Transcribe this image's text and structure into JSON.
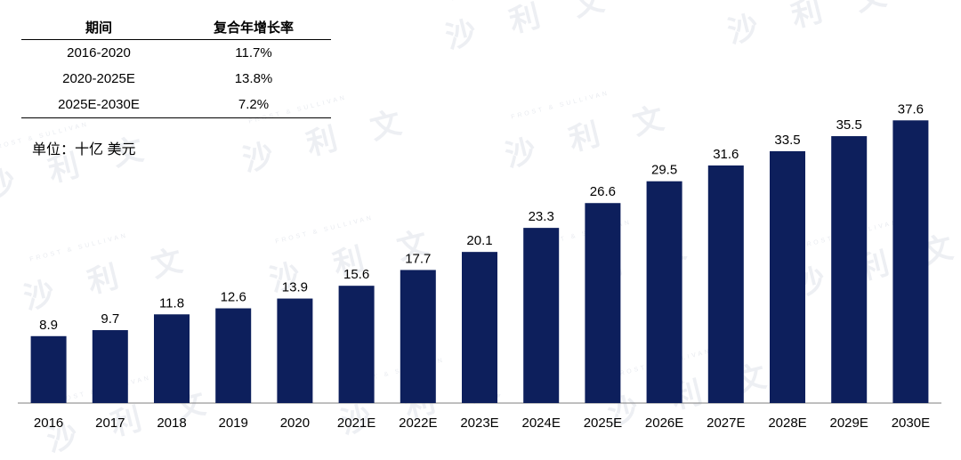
{
  "table": {
    "headers": [
      "期间",
      "复合年增长率"
    ],
    "rows": [
      [
        "2016-2020",
        "11.7%"
      ],
      [
        "2020-2025E",
        "13.8%"
      ],
      [
        "2025E-2030E",
        "7.2%"
      ]
    ]
  },
  "unit_label": "单位：十亿 美元",
  "watermark": {
    "text": "沙 利 文",
    "subtext": "FROST & SULLIVAN"
  },
  "colors": {
    "bar": "#0d1f5c",
    "axis": "#7f7f7f",
    "watermark": "#dfe2ea"
  },
  "chart_data": {
    "type": "bar",
    "categories": [
      "2016",
      "2017",
      "2018",
      "2019",
      "2020",
      "2021E",
      "2022E",
      "2023E",
      "2024E",
      "2025E",
      "2026E",
      "2027E",
      "2028E",
      "2029E",
      "2030E"
    ],
    "values": [
      8.9,
      9.7,
      11.8,
      12.6,
      13.9,
      15.6,
      17.7,
      20.1,
      23.3,
      26.6,
      29.5,
      31.6,
      33.5,
      35.5,
      37.6
    ],
    "data_labels": [
      "8.9",
      "9.7",
      "11.8",
      "12.6",
      "13.9",
      "15.6",
      "17.7",
      "20.1",
      "23.3",
      "26.6",
      "29.5",
      "31.6",
      "33.5",
      "35.5",
      "37.6"
    ],
    "title": "",
    "xlabel": "",
    "ylabel": "",
    "ylim": [
      0,
      40
    ],
    "grid": false,
    "legend": "none"
  }
}
